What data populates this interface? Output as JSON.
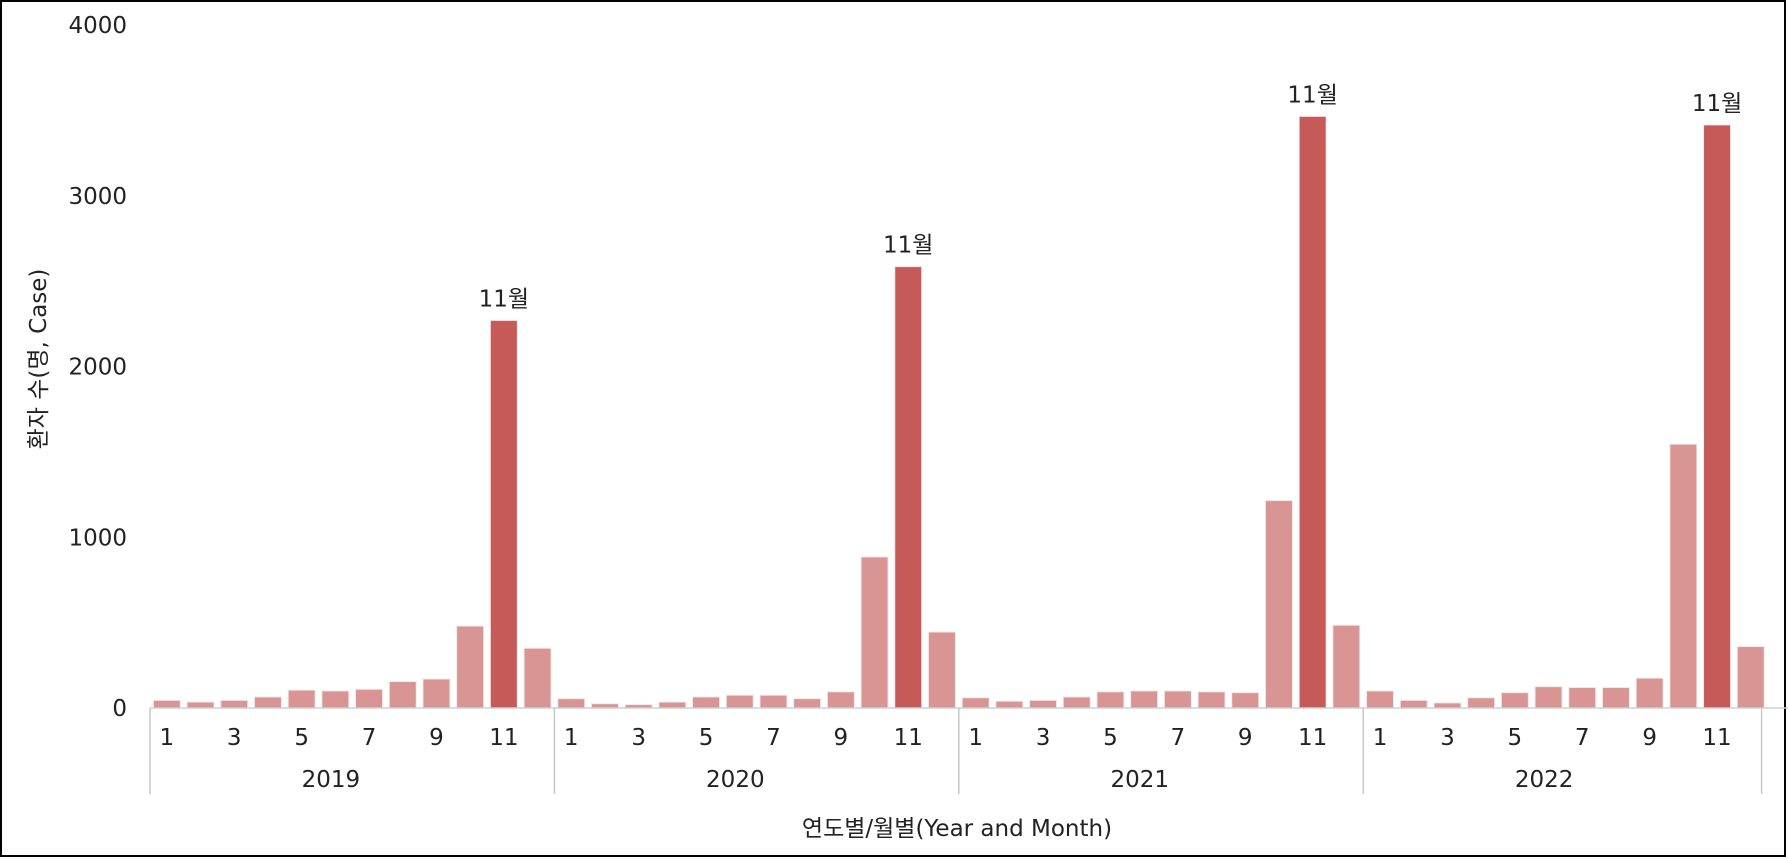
{
  "chart_data": {
    "type": "bar",
    "title": "",
    "ylabel": "환자 수(명, Case)",
    "xlabel": "연도별/월별(Year and Month)",
    "ylim": [
      0,
      4000
    ],
    "yticks": [
      0,
      1000,
      2000,
      3000,
      4000
    ],
    "month_tick_labels": [
      "1",
      "",
      "3",
      "",
      "5",
      "",
      "7",
      "",
      "9",
      "",
      "11",
      ""
    ],
    "years": [
      {
        "year": "2019",
        "values": [
          45,
          35,
          45,
          65,
          105,
          100,
          110,
          155,
          170,
          480,
          2270,
          350
        ]
      },
      {
        "year": "2020",
        "values": [
          55,
          25,
          20,
          35,
          65,
          75,
          75,
          55,
          95,
          885,
          2585,
          445
        ]
      },
      {
        "year": "2021",
        "values": [
          60,
          40,
          45,
          65,
          95,
          100,
          100,
          95,
          90,
          1215,
          3465,
          485
        ]
      },
      {
        "year": "2022",
        "values": [
          100,
          45,
          30,
          60,
          90,
          125,
          120,
          120,
          175,
          1545,
          3415,
          360
        ]
      }
    ],
    "highlight_month": 11,
    "highlight_label": "11월",
    "colors": {
      "bar": "#d99594",
      "highlight": "#c55a58",
      "bar_edge": "#ececec"
    }
  }
}
